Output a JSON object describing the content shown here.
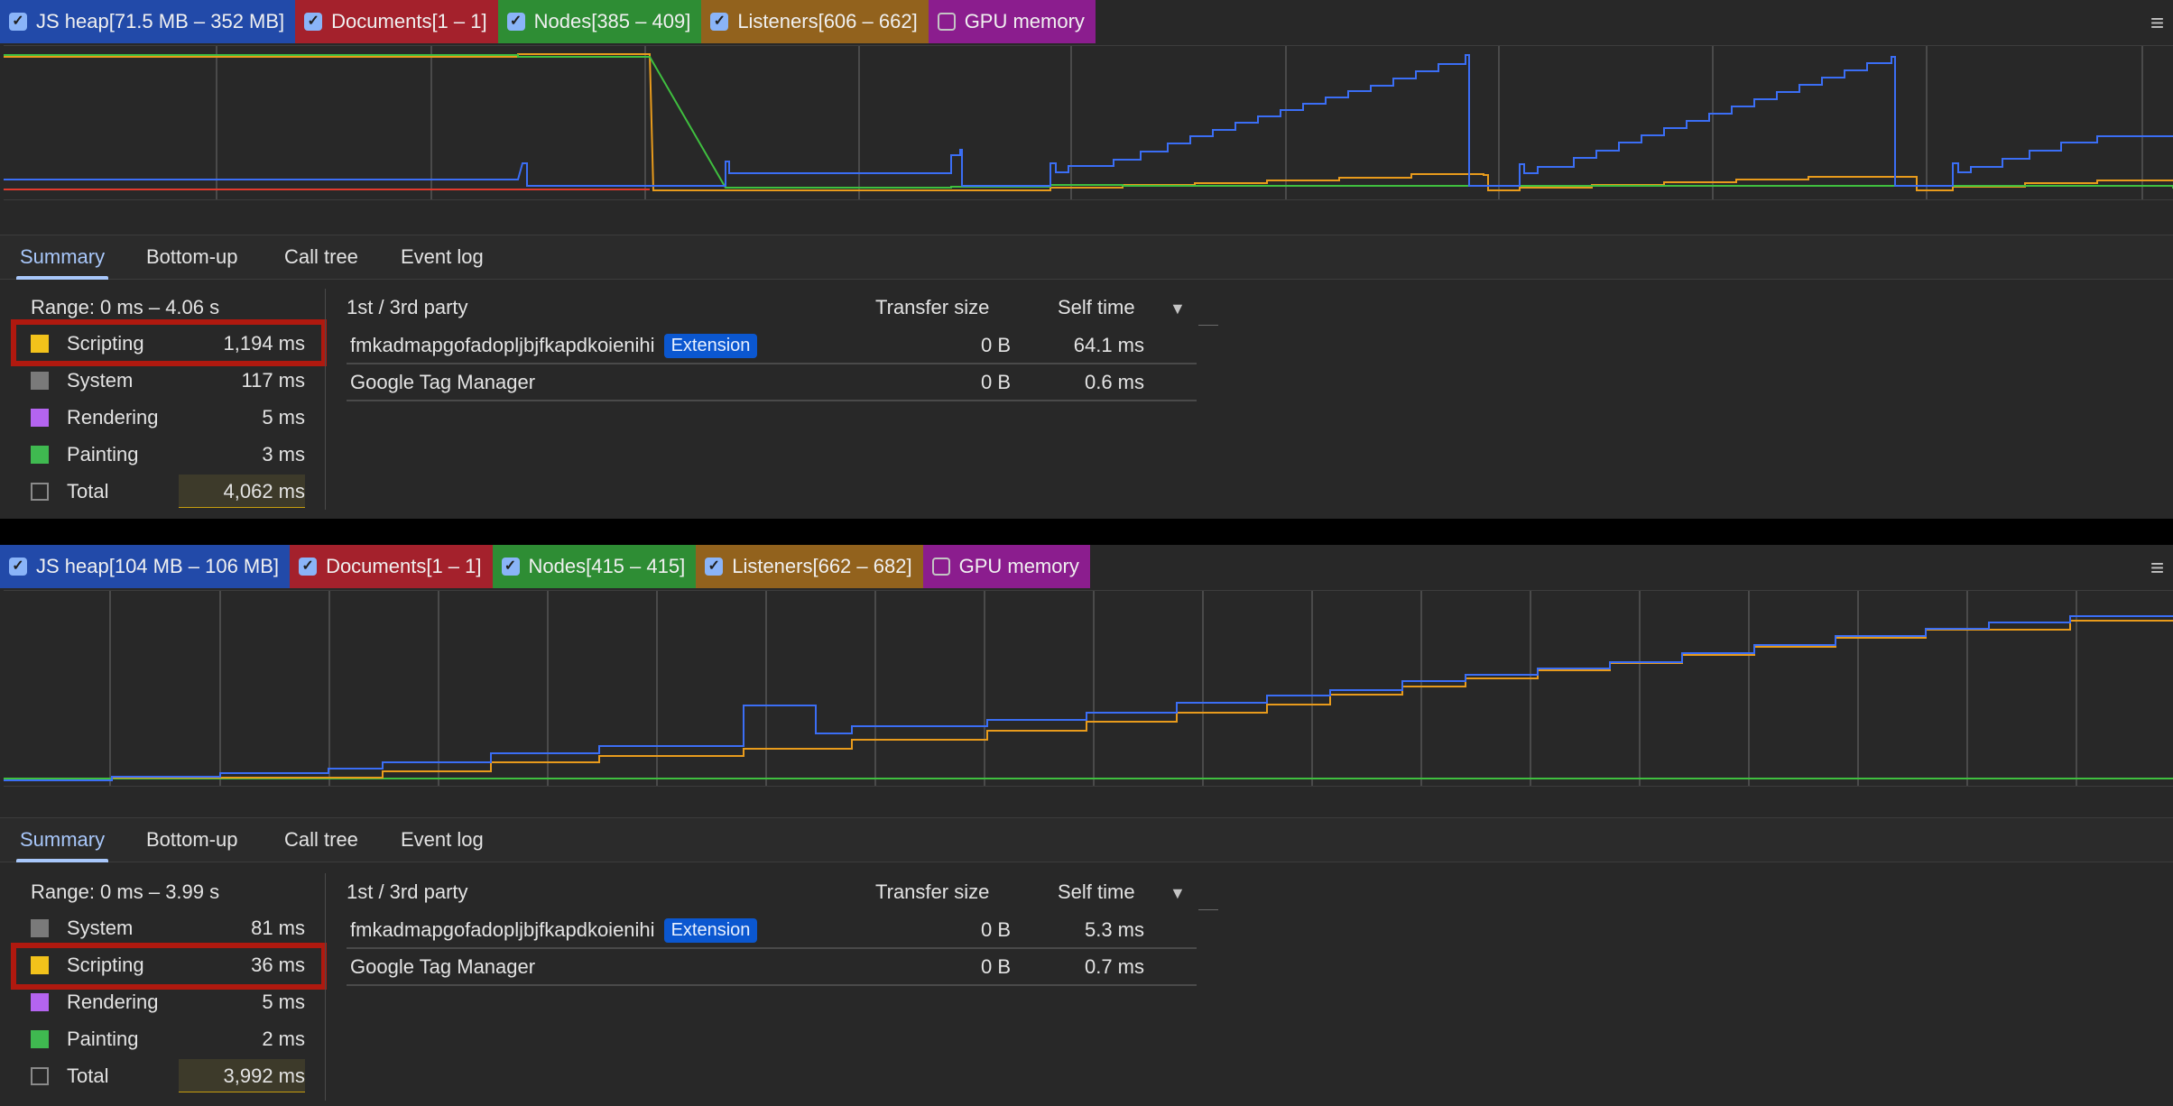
{
  "panels": [
    {
      "legend": [
        {
          "label": "JS heap[71.5 MB – 352 MB]",
          "checked": true,
          "color": "#224aa9"
        },
        {
          "label": "Documents[1 – 1]",
          "checked": true,
          "color": "#a4212c"
        },
        {
          "label": "Nodes[385 – 409]",
          "checked": true,
          "color": "#2e8d34"
        },
        {
          "label": "Listeners[606 – 662]",
          "checked": true,
          "color": "#92621d"
        },
        {
          "label": "GPU memory",
          "checked": false,
          "color": "#8b1d8e"
        }
      ],
      "menu_icon": "≡",
      "tabs": [
        "Summary",
        "Bottom-up",
        "Call tree",
        "Event log"
      ],
      "active_tab": "Summary",
      "range": "Range: 0 ms – 4.06 s",
      "categories": [
        {
          "label": "Scripting",
          "value": "1,194 ms",
          "color": "#f2c21b",
          "highlighted": true
        },
        {
          "label": "System",
          "value": "117 ms",
          "color": "#7a7a7a",
          "highlighted": false
        },
        {
          "label": "Rendering",
          "value": "5 ms",
          "color": "#b464f0",
          "highlighted": false
        },
        {
          "label": "Painting",
          "value": "3 ms",
          "color": "#3fb950",
          "highlighted": false
        },
        {
          "label": "Total",
          "value": "4,062 ms",
          "color": "",
          "highlighted": false
        }
      ],
      "table": {
        "headers": {
          "party": "1st / 3rd party",
          "transfer": "Transfer size",
          "self": "Self time",
          "sort": "▼"
        },
        "rows": [
          {
            "name": "fmkadmapgofadopljbjfkapdkoienihi",
            "badge": "Extension",
            "transfer": "0 B",
            "self": "64.1 ms"
          },
          {
            "name": "Google Tag Manager",
            "badge": "",
            "transfer": "0 B",
            "self": "0.6 ms"
          }
        ]
      }
    },
    {
      "legend": [
        {
          "label": "JS heap[104 MB – 106 MB]",
          "checked": true,
          "color": "#224aa9"
        },
        {
          "label": "Documents[1 – 1]",
          "checked": true,
          "color": "#a4212c"
        },
        {
          "label": "Nodes[415 – 415]",
          "checked": true,
          "color": "#2e8d34"
        },
        {
          "label": "Listeners[662 – 682]",
          "checked": true,
          "color": "#92621d"
        },
        {
          "label": "GPU memory",
          "checked": false,
          "color": "#8b1d8e"
        }
      ],
      "menu_icon": "≡",
      "tabs": [
        "Summary",
        "Bottom-up",
        "Call tree",
        "Event log"
      ],
      "active_tab": "Summary",
      "range": "Range: 0 ms – 3.99 s",
      "categories": [
        {
          "label": "System",
          "value": "81 ms",
          "color": "#7a7a7a",
          "highlighted": false
        },
        {
          "label": "Scripting",
          "value": "36 ms",
          "color": "#f2c21b",
          "highlighted": true
        },
        {
          "label": "Rendering",
          "value": "5 ms",
          "color": "#b464f0",
          "highlighted": false
        },
        {
          "label": "Painting",
          "value": "2 ms",
          "color": "#3fb950",
          "highlighted": false
        },
        {
          "label": "Total",
          "value": "3,992 ms",
          "color": "",
          "highlighted": false
        }
      ],
      "table": {
        "headers": {
          "party": "1st / 3rd party",
          "transfer": "Transfer size",
          "self": "Self time",
          "sort": "▼"
        },
        "rows": [
          {
            "name": "fmkadmapgofadopljbjfkapdkoienihi",
            "badge": "Extension",
            "transfer": "0 B",
            "self": "5.3 ms"
          },
          {
            "name": "Google Tag Manager",
            "badge": "",
            "transfer": "0 B",
            "self": "0.7 ms"
          }
        ]
      }
    }
  ],
  "colors": {
    "heap_line": "#3b6ef5",
    "documents_line": "#e03b2e",
    "nodes_line": "#3fbf3f",
    "listeners_line": "#e89b1c",
    "highlight_box": "#b0190f"
  }
}
